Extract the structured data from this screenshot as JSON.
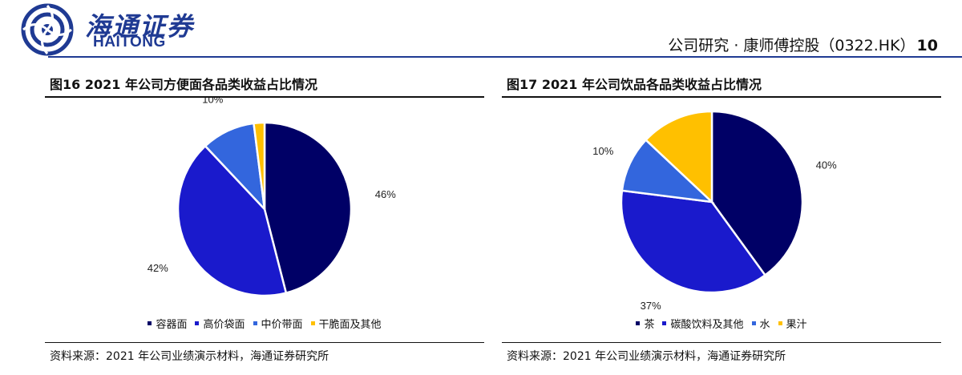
{
  "header": {
    "logo_cn": "海通证券",
    "logo_en": "HAITONG",
    "report_title": "公司研究 · 康师傅控股（0322.HK）",
    "page_number": "10",
    "brand_color": "#1f3a93"
  },
  "figures": [
    {
      "title": "图16 2021 年公司方便面各品类收益占比情况",
      "source": "资料来源：2021 年公司业绩演示材料，海通证券研究所",
      "legend": [
        "容器面",
        "高价袋面",
        "中价带面",
        "干脆面及其他"
      ]
    },
    {
      "title": "图17   2021 年公司饮品各品类收益占比情况",
      "source": "资料来源：2021 年公司业绩演示材料，海通证券研究所",
      "legend": [
        "茶",
        "碳酸饮料及其他",
        "水",
        "果汁"
      ]
    }
  ],
  "chart_data": [
    {
      "type": "pie",
      "title": "图16 2021 年公司方便面各品类收益占比情况",
      "labels": [
        "容器面",
        "高价袋面",
        "中价带面",
        "干脆面及其他"
      ],
      "values": [
        46,
        42,
        10,
        2
      ],
      "value_labels": [
        "46%",
        "42%",
        "10%",
        "2%"
      ],
      "colors": [
        "#000066",
        "#1a1acc",
        "#3366dd",
        "#ffc000"
      ],
      "start": "12 o'clock, clockwise",
      "legend_position": "bottom"
    },
    {
      "type": "pie",
      "title": "图17   2021 年公司饮品各品类收益占比情况",
      "labels": [
        "茶",
        "碳酸饮料及其他",
        "水",
        "果汁"
      ],
      "values": [
        40,
        37,
        10,
        13
      ],
      "value_labels": [
        "40%",
        "37%",
        "10%",
        "13%"
      ],
      "colors": [
        "#000066",
        "#1a1acc",
        "#3366dd",
        "#ffc000"
      ],
      "start": "12 o'clock, clockwise",
      "legend_position": "bottom"
    }
  ]
}
